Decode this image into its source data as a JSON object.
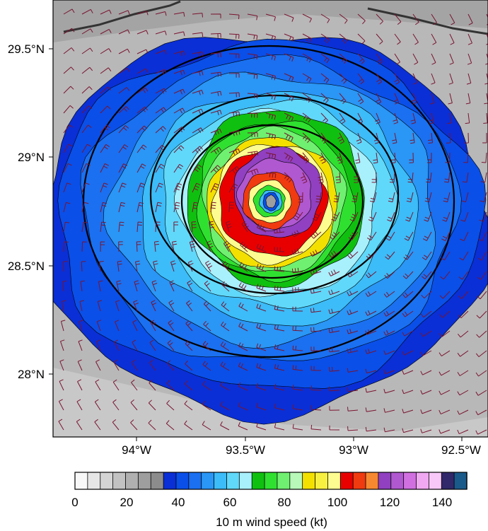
{
  "map": {
    "lat_labels": [
      "29.5°N",
      "29°N",
      "28.5°N",
      "28°N"
    ],
    "lon_labels": [
      "94°W",
      "93.5°W",
      "93°W",
      "92.5°W"
    ]
  },
  "colorbar": {
    "title": "10 m wind speed (kt)",
    "tick_labels": [
      "0",
      "20",
      "40",
      "60",
      "80",
      "100",
      "120",
      "140"
    ],
    "colors": [
      "#f8f8f8",
      "#e6e6e6",
      "#d4d4d4",
      "#c2c2c2",
      "#b0b0b0",
      "#9e9e9e",
      "#8c8c8c",
      "#0a2fd6",
      "#0a4fe8",
      "#1a70f0",
      "#2a96f6",
      "#3cbcf8",
      "#60d8fa",
      "#a8f0fc",
      "#10c010",
      "#30e030",
      "#70f070",
      "#b8f8b8",
      "#f4e000",
      "#f8f040",
      "#fcfc90",
      "#e80000",
      "#f03a10",
      "#f88830",
      "#9040c0",
      "#b058d0",
      "#d070e0",
      "#f0a8f0",
      "#f8c8f8",
      "#30286a",
      "#1a5a8a"
    ]
  },
  "colors": {
    "barb": "#7a1430",
    "contour": "#000000",
    "coast": "#333333"
  }
}
